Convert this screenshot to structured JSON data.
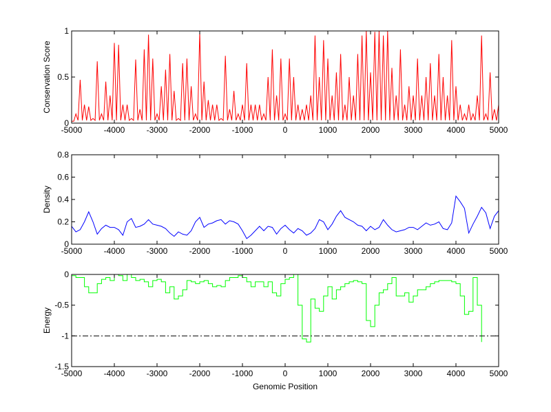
{
  "chart_data": [
    {
      "type": "line",
      "ylabel": "Conservation Score",
      "xlabel": "",
      "xlim": [
        -5000,
        5000
      ],
      "ylim": [
        0,
        1
      ],
      "xticks": [
        "-5000",
        "-4000",
        "-3000",
        "-2000",
        "-1000",
        "0",
        "1000",
        "2000",
        "3000",
        "4000",
        "5000"
      ],
      "yticks": [
        "0",
        "0.5",
        "1"
      ],
      "color": "#ff0000",
      "x_start": -5000,
      "x_step": 100,
      "values": [
        0.02,
        0.1,
        0.47,
        0.2,
        0.18,
        0.05,
        0.67,
        0.1,
        0.45,
        0.3,
        0.87,
        0.85,
        0.2,
        0.2,
        0.05,
        0.69,
        0.15,
        0.8,
        0.96,
        0.7,
        0.1,
        0.4,
        0.58,
        0.75,
        0.35,
        0.05,
        0.65,
        0.7,
        0.4,
        0.1,
        0.99,
        0.45,
        0.25,
        0.2,
        0.2,
        0.05,
        0.73,
        0.15,
        0.35,
        0.1,
        0.2,
        0.65,
        0.2,
        0.2,
        0.2,
        0.1,
        0.5,
        0.8,
        0.3,
        0.7,
        0.1,
        0.7,
        0.5,
        0.2,
        0.15,
        0.2,
        0.3,
        0.95,
        0.5,
        0.9,
        0.7,
        0.3,
        0.55,
        0.75,
        0.2,
        0.5,
        0.3,
        0.75,
        0.95,
        1,
        0.55,
        0.99,
        1,
        0.95,
        1,
        0.6,
        0.3,
        0.8,
        0.2,
        0.4,
        0.3,
        0.7,
        0.3,
        0.5,
        0.65,
        0.3,
        0.75,
        0.5,
        0.3,
        0.9,
        0.4,
        0.2,
        0.1,
        0.2,
        0.1,
        0.3,
        0.95,
        0.1,
        0.55,
        0.15,
        0.2
      ]
    },
    {
      "type": "line",
      "ylabel": "Density",
      "xlabel": "",
      "xlim": [
        -5000,
        5000
      ],
      "ylim": [
        0,
        0.8
      ],
      "xticks": [
        "-5000",
        "-4000",
        "-3000",
        "-2000",
        "-1000",
        "0",
        "1000",
        "2000",
        "3000",
        "4000",
        "5000"
      ],
      "yticks": [
        "0",
        "0.2",
        "0.4",
        "0.6",
        "0.8"
      ],
      "color": "#0000ff",
      "x_start": -5000,
      "x_step": 100,
      "values": [
        0.16,
        0.11,
        0.13,
        0.2,
        0.29,
        0.2,
        0.09,
        0.14,
        0.17,
        0.15,
        0.15,
        0.13,
        0.08,
        0.2,
        0.23,
        0.15,
        0.16,
        0.18,
        0.22,
        0.18,
        0.17,
        0.16,
        0.14,
        0.1,
        0.07,
        0.11,
        0.09,
        0.08,
        0.12,
        0.2,
        0.24,
        0.15,
        0.18,
        0.19,
        0.21,
        0.22,
        0.18,
        0.21,
        0.2,
        0.18,
        0.12,
        0.05,
        0.08,
        0.12,
        0.16,
        0.12,
        0.16,
        0.15,
        0.09,
        0.14,
        0.17,
        0.13,
        0.1,
        0.14,
        0.12,
        0.08,
        0.1,
        0.14,
        0.22,
        0.2,
        0.13,
        0.18,
        0.25,
        0.3,
        0.24,
        0.22,
        0.2,
        0.17,
        0.16,
        0.12,
        0.16,
        0.13,
        0.15,
        0.22,
        0.17,
        0.13,
        0.11,
        0.12,
        0.13,
        0.15,
        0.15,
        0.13,
        0.16,
        0.19,
        0.17,
        0.18,
        0.2,
        0.14,
        0.13,
        0.19,
        0.43,
        0.38,
        0.32,
        0.1,
        0.18,
        0.25,
        0.33,
        0.28,
        0.14,
        0.25,
        0.3
      ]
    },
    {
      "type": "line",
      "ylabel": "Energy",
      "xlabel": "Genomic Position",
      "xlim": [
        -5000,
        5000
      ],
      "ylim": [
        -1.5,
        0
      ],
      "xticks": [
        "-5000",
        "-4000",
        "-3000",
        "-2000",
        "-1000",
        "0",
        "1000",
        "2000",
        "3000",
        "4000",
        "5000"
      ],
      "yticks": [
        "-1.5",
        "-1",
        "-0.5",
        "0"
      ],
      "color": "#00ff00",
      "threshold": -1,
      "x_start": -5000,
      "x_step": 100,
      "values": [
        -0.02,
        -0.05,
        -0.05,
        -0.2,
        -0.3,
        -0.3,
        -0.15,
        -0.08,
        -0.05,
        -0.1,
        0,
        -0.02,
        -0.1,
        0,
        -0.05,
        -0.1,
        -0.08,
        -0.12,
        -0.2,
        -0.1,
        -0.08,
        -0.12,
        -0.3,
        -0.2,
        -0.4,
        -0.35,
        -0.25,
        -0.1,
        -0.12,
        -0.15,
        -0.12,
        -0.1,
        -0.15,
        -0.2,
        -0.18,
        -0.2,
        -0.1,
        -0.05,
        -0.05,
        -0.02,
        -0.05,
        -0.12,
        -0.2,
        -0.12,
        -0.12,
        -0.2,
        -0.12,
        -0.3,
        -0.35,
        -0.15,
        -0.08,
        -0.05,
        0,
        -0.5,
        -1.05,
        -1.1,
        -0.4,
        -0.55,
        -0.6,
        -0.35,
        -0.2,
        -0.4,
        -0.25,
        -0.2,
        -0.15,
        -0.12,
        -0.1,
        -0.12,
        -0.15,
        -0.75,
        -0.85,
        -0.5,
        -0.3,
        -0.25,
        -0.15,
        -0.05,
        -0.35,
        -0.35,
        -0.3,
        -0.45,
        -0.35,
        -0.25,
        -0.25,
        -0.2,
        -0.15,
        -0.12,
        -0.1,
        -0.1,
        -0.1,
        -0.12,
        -0.15,
        -0.35,
        -0.65,
        -0.6,
        -0.05,
        -0.5,
        -1.1
      ]
    }
  ]
}
